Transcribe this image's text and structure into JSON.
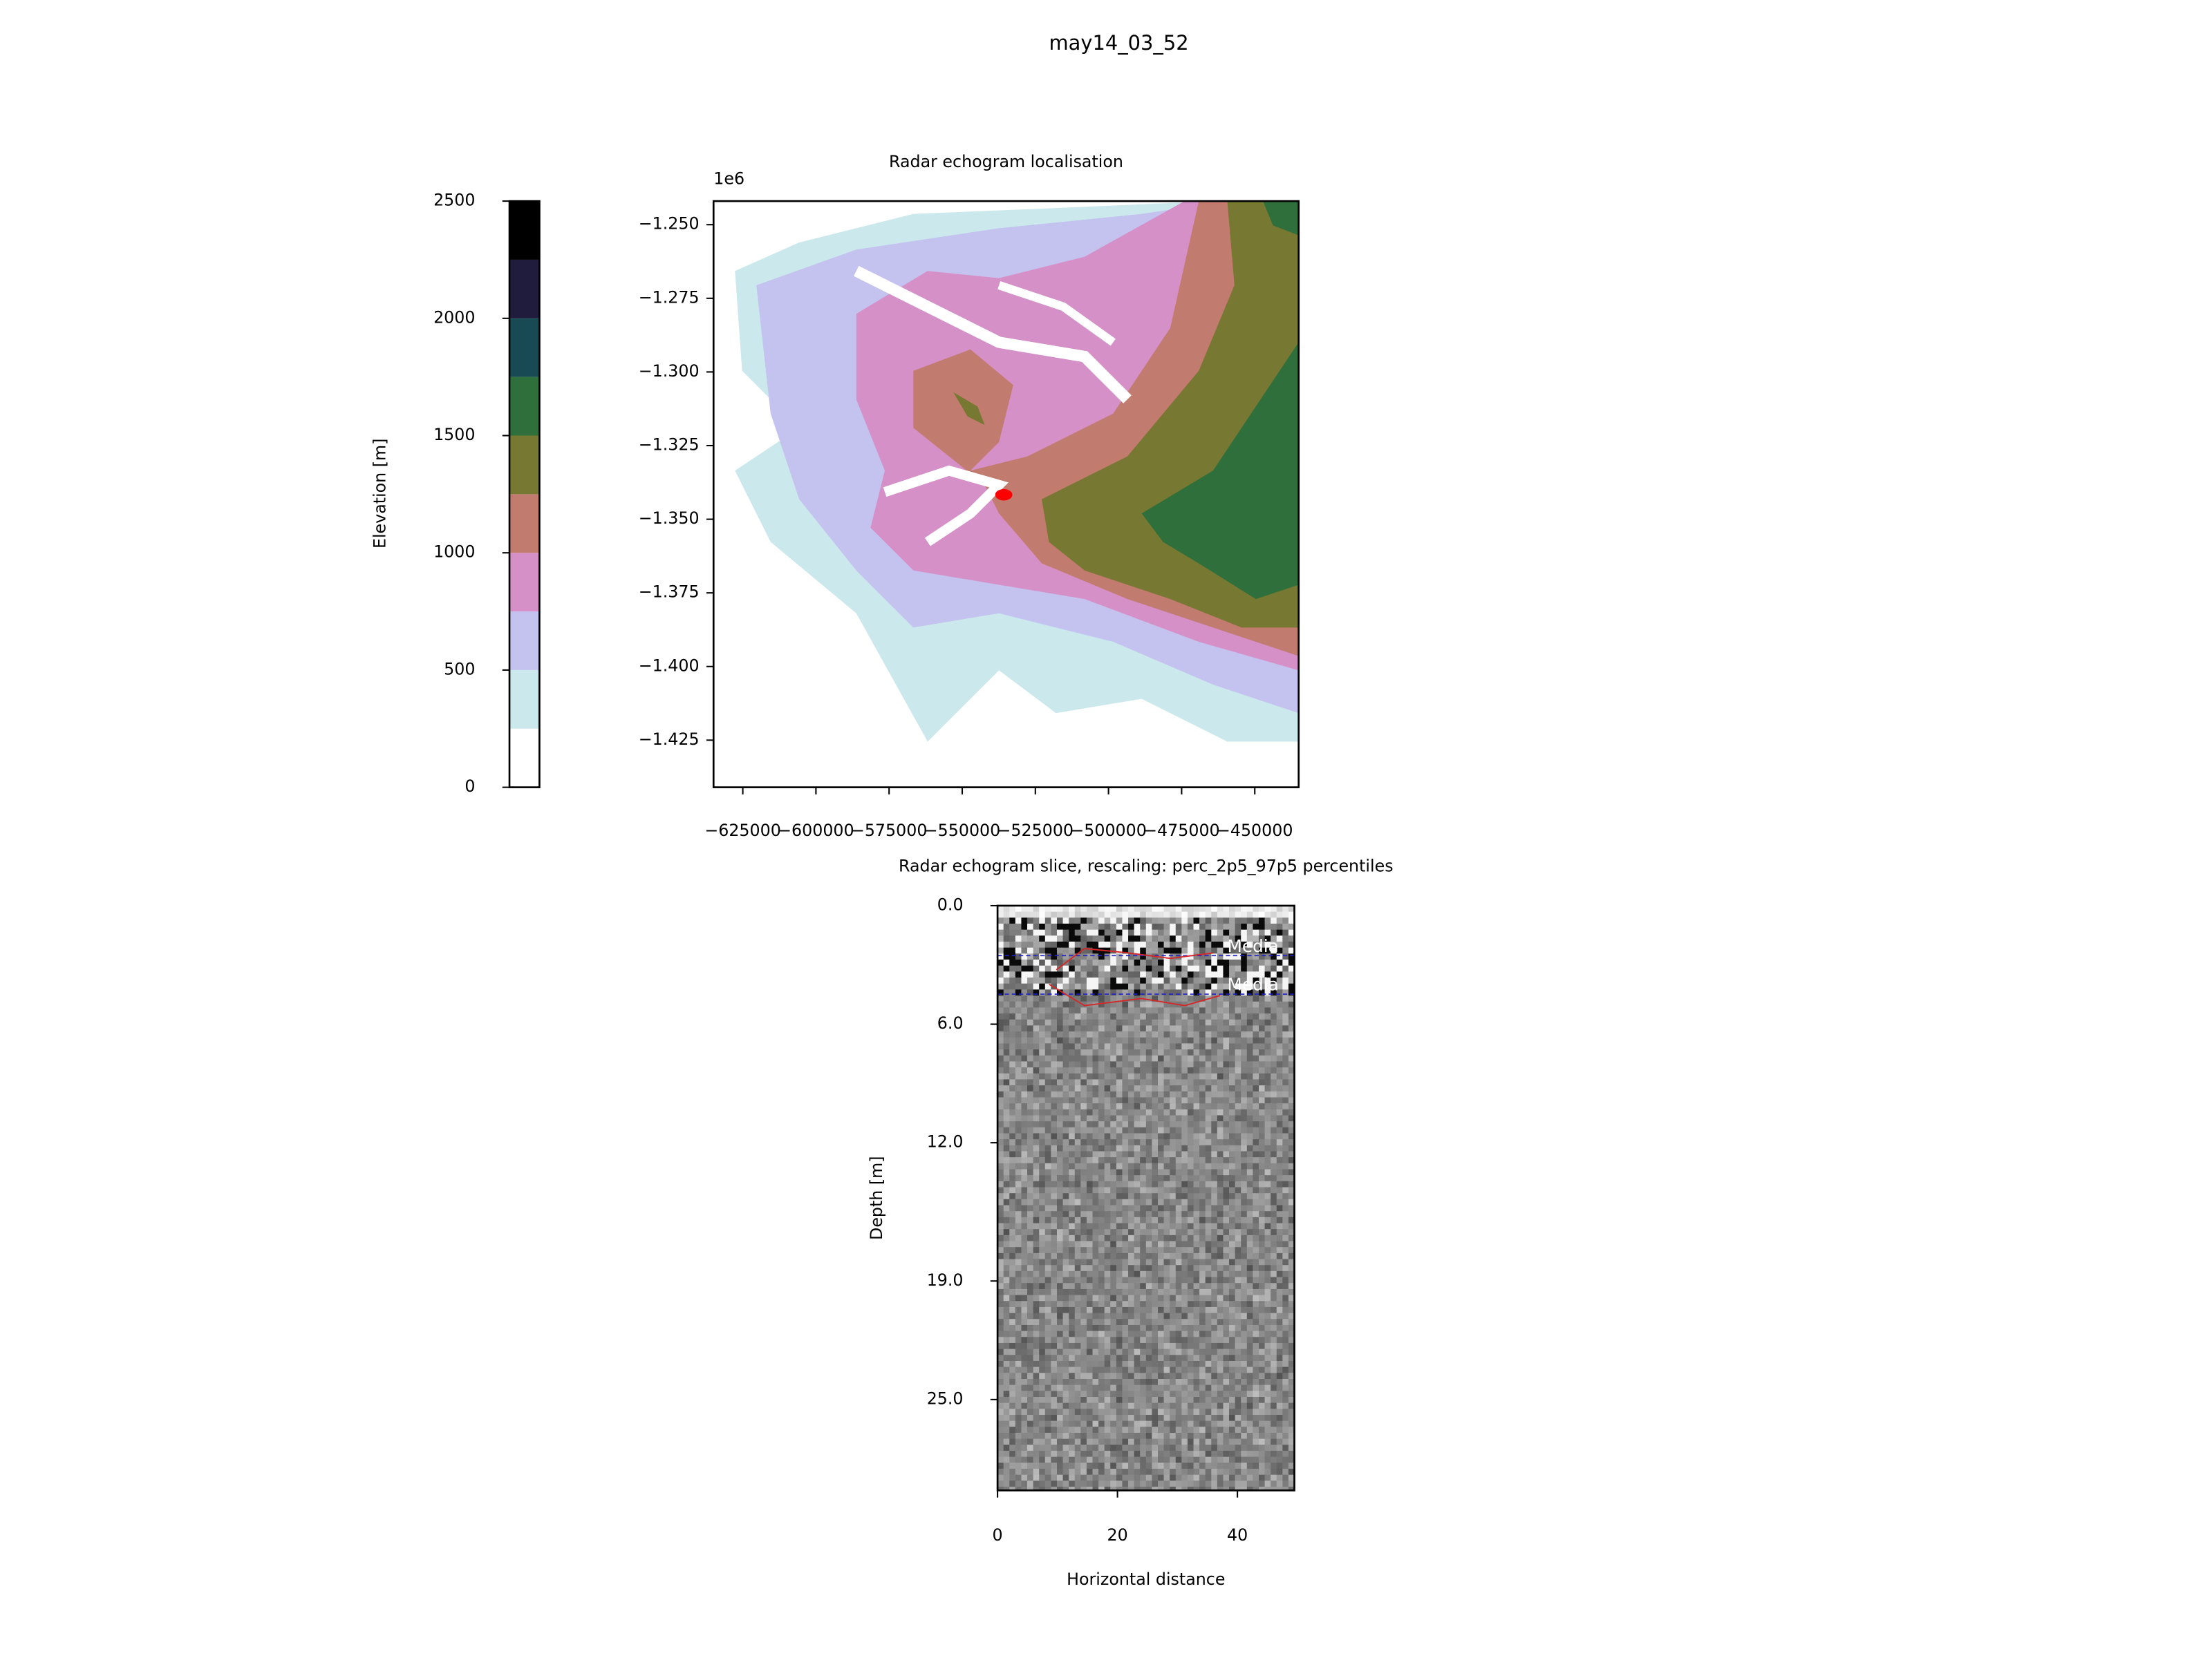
{
  "title": "may14_03_52",
  "chart_data": [
    {
      "type": "colorbar",
      "ylabel": "Elevation [m]",
      "levels": [
        0,
        250,
        500,
        750,
        1000,
        1250,
        1500,
        1750,
        2000,
        2250,
        2500
      ],
      "colors": [
        "#ffffff",
        "#cbe9ec",
        "#c4c2ef",
        "#d690c8",
        "#c27b6f",
        "#777831",
        "#2f6f3b",
        "#174a52",
        "#201c3d",
        "#000000"
      ],
      "ylim": [
        0,
        2500
      ],
      "yticks": [
        0,
        500,
        1000,
        1500,
        2000,
        2500
      ]
    },
    {
      "type": "scatter",
      "title": "Radar echogram localisation",
      "offset_label": "1e6",
      "x": [
        -535800
      ],
      "values": [
        -1.3417
      ],
      "color": "#ff0000",
      "xlim": [
        -635000,
        -435000
      ],
      "ylim": [
        -1.441,
        -1.242
      ],
      "xticks": [
        {
          "value": -625000,
          "label": "−625000"
        },
        {
          "value": -600000,
          "label": "−600000"
        },
        {
          "value": -575000,
          "label": "−575000"
        },
        {
          "value": -550000,
          "label": "−550000"
        },
        {
          "value": -525000,
          "label": "−525000"
        },
        {
          "value": -500000,
          "label": "−500000"
        },
        {
          "value": -475000,
          "label": "−475000"
        },
        {
          "value": -450000,
          "label": "−450000"
        }
      ],
      "yticks": [
        {
          "value": -1.25,
          "label": "−1.250"
        },
        {
          "value": -1.275,
          "label": "−1.275"
        },
        {
          "value": -1.3,
          "label": "−1.300"
        },
        {
          "value": -1.325,
          "label": "−1.325"
        },
        {
          "value": -1.35,
          "label": "−1.350"
        },
        {
          "value": -1.375,
          "label": "−1.375"
        },
        {
          "value": -1.4,
          "label": "−1.400"
        },
        {
          "value": -1.425,
          "label": "−1.425"
        }
      ]
    },
    {
      "type": "echogram",
      "title": "Radar echogram slice, rescaling: perc_2p5_97p5 percentiles",
      "xlabel": "Horizontal distance",
      "ylabel": "Depth [m]",
      "xlim": [
        0,
        49.5
      ],
      "ylim": [
        29.6,
        0
      ],
      "xticks": [
        0,
        20,
        40
      ],
      "yticks": [
        {
          "value": 0,
          "label": "0.0"
        },
        {
          "value": 6,
          "label": "6.0"
        },
        {
          "value": 12,
          "label": "12.0"
        },
        {
          "value": 19,
          "label": "19.0"
        },
        {
          "value": 25,
          "label": "25.0"
        }
      ],
      "hlines": [
        {
          "name": "Media",
          "color": "#1f1fcc",
          "value": 2.53
        },
        {
          "name": "Media",
          "color": "#1f1fcc",
          "value": 4.48
        }
      ],
      "lines": [
        {
          "color": "#d62728",
          "x": [
            9.8,
            14.5,
            21.7,
            28.8,
            36
          ],
          "values": [
            3.25,
            2.17,
            2.39,
            2.67,
            2.39
          ]
        },
        {
          "color": "#d62728",
          "x": [
            8.6,
            14.5,
            24,
            31.2,
            37.1
          ],
          "values": [
            3.98,
            5.06,
            4.7,
            5.06,
            4.55
          ]
        }
      ]
    }
  ]
}
